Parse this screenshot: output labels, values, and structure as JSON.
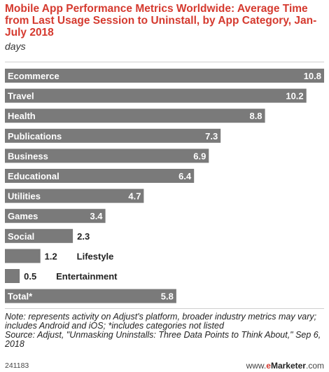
{
  "chart_data": {
    "type": "bar",
    "orientation": "horizontal",
    "title": "Mobile App Performance Metrics Worldwide: Average Time from Last Usage Session to Uninstall, by App Category, Jan-July 2018",
    "subtitle": "days",
    "categories": [
      "Ecommerce",
      "Travel",
      "Health",
      "Publications",
      "Business",
      "Educational",
      "Utilities",
      "Games",
      "Social",
      "Lifestyle",
      "Entertainment",
      "Total*"
    ],
    "values": [
      10.8,
      10.2,
      8.8,
      7.3,
      6.9,
      6.4,
      4.7,
      3.4,
      2.3,
      1.2,
      0.5,
      5.8
    ],
    "value_labels": [
      "10.8",
      "10.2",
      "8.8",
      "7.3",
      "6.9",
      "6.4",
      "4.7",
      "3.4",
      "2.3",
      "1.2",
      "0.5",
      "5.8"
    ],
    "xlim": [
      0,
      10.8
    ],
    "grid": false,
    "bar_color": "#7a7a7a"
  },
  "note": "Note: represents activity on Adjust's platform, broader industry metrics may vary; includes Android and iOS; *includes categories not listed",
  "source": "Source: Adjust, \"Unmasking Uninstalls: Three Data Points to Think About,\" Sep 6, 2018",
  "footer": {
    "chart_id": "241183",
    "brand_prefix": "www.",
    "brand_e": "e",
    "brand_rest": "Marketer",
    "brand_suffix": ".com"
  }
}
